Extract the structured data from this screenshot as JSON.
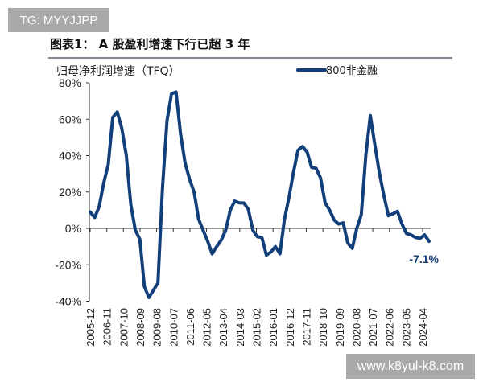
{
  "watermarks": {
    "top_left": "TG: MYYJJPP",
    "bottom_right": "www.k8yul-k8.com"
  },
  "figure_title": "图表1：  A 股盈利增速下行已超 3 年",
  "colors": {
    "series": "#123f7a",
    "axis": "#333333",
    "rule": "#7f8a96"
  },
  "chart_data": {
    "type": "line",
    "title": "",
    "ylabel": "归母净利润增速（TFQ）",
    "xlabel": "",
    "ylim": [
      -40,
      80
    ],
    "yticks": [
      "80%",
      "60%",
      "40%",
      "20%",
      "0%",
      "-20%",
      "-40%"
    ],
    "ytick_values": [
      80,
      60,
      40,
      20,
      0,
      -20,
      -40
    ],
    "xticks": [
      "2005-12",
      "2006-11",
      "2007-10",
      "2008-09",
      "2009-08",
      "2010-07",
      "2011-06",
      "2012-05",
      "2013-04",
      "2014-03",
      "2015-02",
      "2016-01",
      "2016-12",
      "2017-11",
      "2018-10",
      "2019-09",
      "2020-08",
      "2021-07",
      "2022-06",
      "2023-05",
      "2024-04"
    ],
    "grid": false,
    "legend": "top-right",
    "series": [
      {
        "name": "800非金融",
        "values": [
          9,
          6,
          12,
          25,
          35,
          61,
          64,
          55,
          40,
          13,
          -1,
          -6,
          -32,
          -38,
          -34,
          -30,
          22,
          59,
          74,
          75,
          52,
          36,
          27,
          20,
          5,
          -1,
          -7,
          -14,
          -10,
          -6.5,
          -1,
          10,
          15,
          14,
          14,
          10.5,
          -1,
          -4.6,
          -5,
          -14.7,
          -13,
          -10,
          -14,
          5,
          17,
          31,
          43,
          45,
          42,
          33.5,
          33,
          27.6,
          14,
          10,
          4.6,
          2.4,
          3,
          -8,
          -11,
          0,
          7.5,
          40,
          62,
          46,
          30.6,
          18,
          7,
          8,
          9.4,
          2.4,
          -2.8,
          -3.6,
          -5,
          -5.5,
          -3.6,
          -7.1
        ]
      }
    ],
    "annotations": [
      {
        "text": "-7.1%",
        "value": -7.1
      }
    ]
  }
}
